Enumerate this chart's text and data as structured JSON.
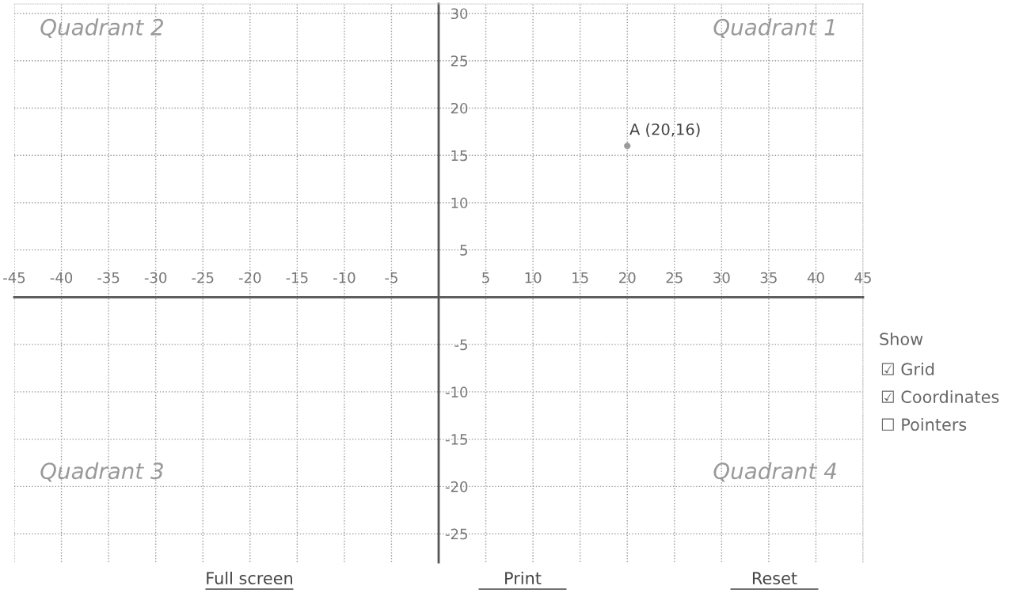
{
  "chart_data": {
    "type": "scatter",
    "x": [
      20
    ],
    "values": [
      16
    ],
    "color": "#9a9a9a",
    "marker": "circle",
    "grid": true,
    "xlim": [
      -45,
      45
    ],
    "ylim": [
      -28,
      31
    ],
    "xticks": [
      -45,
      -40,
      -35,
      -30,
      -25,
      -20,
      -15,
      -10,
      -5,
      5,
      10,
      15,
      20,
      25,
      30,
      35,
      40,
      45
    ],
    "yticks": [
      -25,
      -20,
      -15,
      -10,
      -5,
      5,
      10,
      15,
      20,
      25,
      30
    ],
    "annotations": [
      {
        "text": "A (20,16)",
        "x": 20,
        "y": 16
      },
      "Quadrant 1",
      "Quadrant 2",
      "Quadrant 3",
      "Quadrant 4",
      "Show",
      "☑ Grid",
      "☑ Coordinates",
      "☐ Pointers",
      "Full screen",
      "Print",
      "Reset"
    ]
  }
}
